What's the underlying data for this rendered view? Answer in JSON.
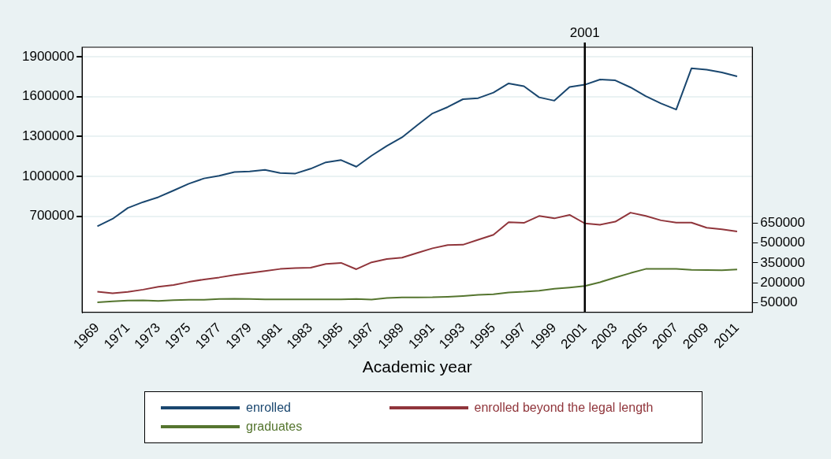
{
  "chart_data": {
    "type": "line",
    "xlabel": "Academic year",
    "x": [
      1969,
      1970,
      1971,
      1972,
      1973,
      1974,
      1975,
      1976,
      1977,
      1978,
      1979,
      1980,
      1981,
      1982,
      1983,
      1984,
      1985,
      1986,
      1987,
      1988,
      1989,
      1990,
      1991,
      1992,
      1993,
      1994,
      1995,
      1996,
      1997,
      1998,
      1999,
      2000,
      2001,
      2002,
      2003,
      2004,
      2005,
      2006,
      2007,
      2008,
      2009,
      2010,
      2011
    ],
    "series": [
      {
        "name": "enrolled",
        "color": "#1a476f",
        "values": [
          625000,
          681000,
          763000,
          807000,
          844000,
          894000,
          945000,
          985000,
          1005000,
          1033000,
          1037000,
          1049000,
          1026000,
          1022000,
          1058000,
          1106000,
          1123000,
          1073000,
          1156000,
          1229000,
          1294000,
          1386000,
          1474000,
          1522000,
          1581000,
          1589000,
          1631000,
          1700000,
          1679000,
          1595000,
          1570000,
          1673000,
          1690000,
          1729000,
          1723000,
          1670000,
          1604000,
          1549000,
          1503000,
          1813000,
          1803000,
          1782000,
          1753000
        ]
      },
      {
        "name": "enrolled beyond the legal length",
        "color": "#90353b",
        "axis": "y2",
        "values": [
          132000,
          121000,
          131000,
          148000,
          169000,
          183000,
          206000,
          225000,
          240000,
          259000,
          273000,
          288000,
          304000,
          310000,
          314000,
          342000,
          350000,
          302000,
          354000,
          379000,
          389000,
          425000,
          460000,
          484000,
          487000,
          525000,
          562000,
          657000,
          652000,
          704000,
          686000,
          712000,
          648000,
          638000,
          661000,
          729000,
          704000,
          671000,
          654000,
          654000,
          615000,
          604000,
          587000
        ]
      },
      {
        "name": "graduates",
        "color": "#55752f",
        "axis": "y2",
        "values": [
          52000,
          60000,
          65000,
          67000,
          63000,
          69000,
          71000,
          71000,
          77000,
          79000,
          77000,
          75000,
          75000,
          75000,
          75000,
          75000,
          75000,
          77000,
          73000,
          85000,
          89000,
          89000,
          90000,
          94000,
          100000,
          108000,
          113000,
          127000,
          132000,
          140000,
          154000,
          164000,
          175000,
          204000,
          239000,
          273000,
          304000,
          304000,
          304000,
          298000,
          296000,
          294000,
          300000
        ]
      }
    ],
    "xlim": [
      1968,
      2012
    ],
    "xticks": [
      1969,
      1971,
      1973,
      1975,
      1977,
      1979,
      1981,
      1983,
      1985,
      1987,
      1989,
      1991,
      1993,
      1995,
      1997,
      1999,
      2001,
      2003,
      2005,
      2007,
      2009,
      2011
    ],
    "ylim": [
      -22000,
      1972000
    ],
    "yticks": [
      700000,
      1000000,
      1300000,
      1600000,
      1900000
    ],
    "y2lim": [
      -23000,
      1978000
    ],
    "y2ticks": [
      50000,
      200000,
      350000,
      500000,
      650000
    ],
    "ref_lines": [
      {
        "axis": "x",
        "value": 2001,
        "label": "2001",
        "color": "#000000"
      }
    ],
    "grid": "y",
    "legend": "bottom",
    "marker": "none",
    "line_style": "solid"
  }
}
